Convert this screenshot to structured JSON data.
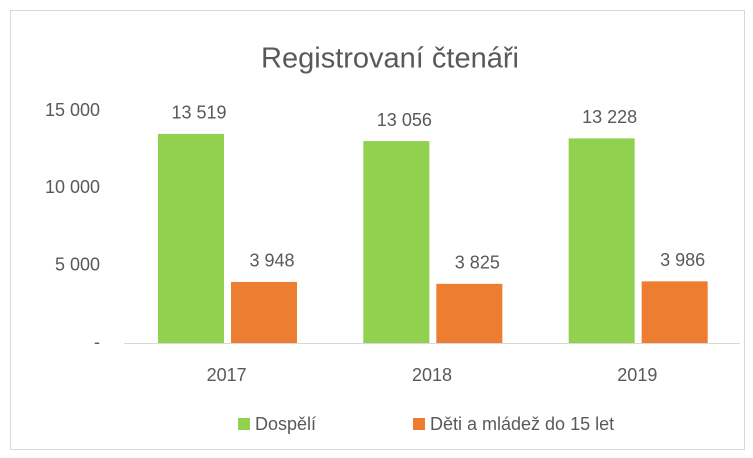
{
  "chart_data": {
    "type": "bar",
    "title": "Registrovaní čtenáři",
    "categories": [
      "2017",
      "2018",
      "2019"
    ],
    "series": [
      {
        "name": "Dospělí",
        "color": "#92d050",
        "values": [
          13519,
          13056,
          13228
        ],
        "value_labels": [
          "13 519",
          "13 056",
          "13 228"
        ]
      },
      {
        "name": "Děti a mládež do 15 let",
        "color": "#ed7d31",
        "values": [
          3948,
          3825,
          3986
        ],
        "value_labels": [
          "3 948",
          "3 825",
          "3 986"
        ]
      }
    ],
    "ylim": [
      0,
      15000
    ],
    "yticks": [
      {
        "value": 0,
        "label": "-"
      },
      {
        "value": 5000,
        "label": "5 000"
      },
      {
        "value": 10000,
        "label": "10 000"
      },
      {
        "value": 15000,
        "label": "15 000"
      }
    ],
    "grid": false,
    "legend": "bottom"
  }
}
